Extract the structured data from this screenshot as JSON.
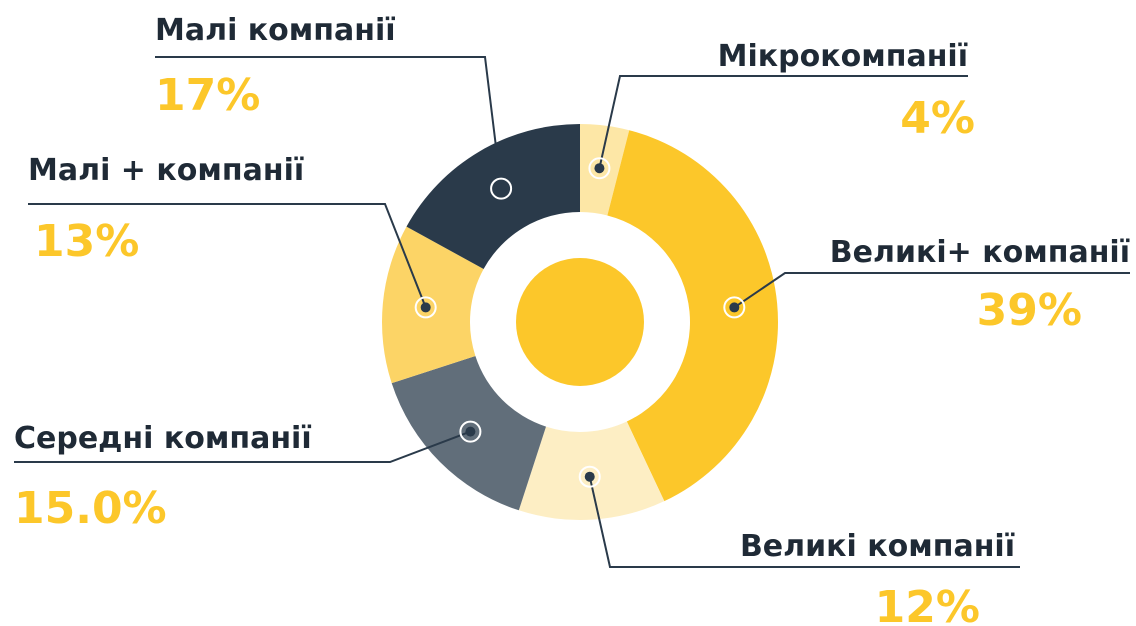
{
  "chart_data": {
    "type": "donut",
    "categories": [
      "Мікрокомпанії",
      "Великі+ компанії",
      "Великі компанії",
      "Середні компанії",
      "Малі + компанії",
      "Малі компанії"
    ],
    "values": [
      4,
      39,
      12,
      15.0,
      13,
      17
    ],
    "value_labels": [
      "4%",
      "39%",
      "12%",
      "15.0%",
      "13%",
      "17%"
    ],
    "colors": [
      "#fde7a6",
      "#fcc72a",
      "#fdeec4",
      "#616e7a",
      "#fcd466",
      "#2a3a4a"
    ]
  }
}
